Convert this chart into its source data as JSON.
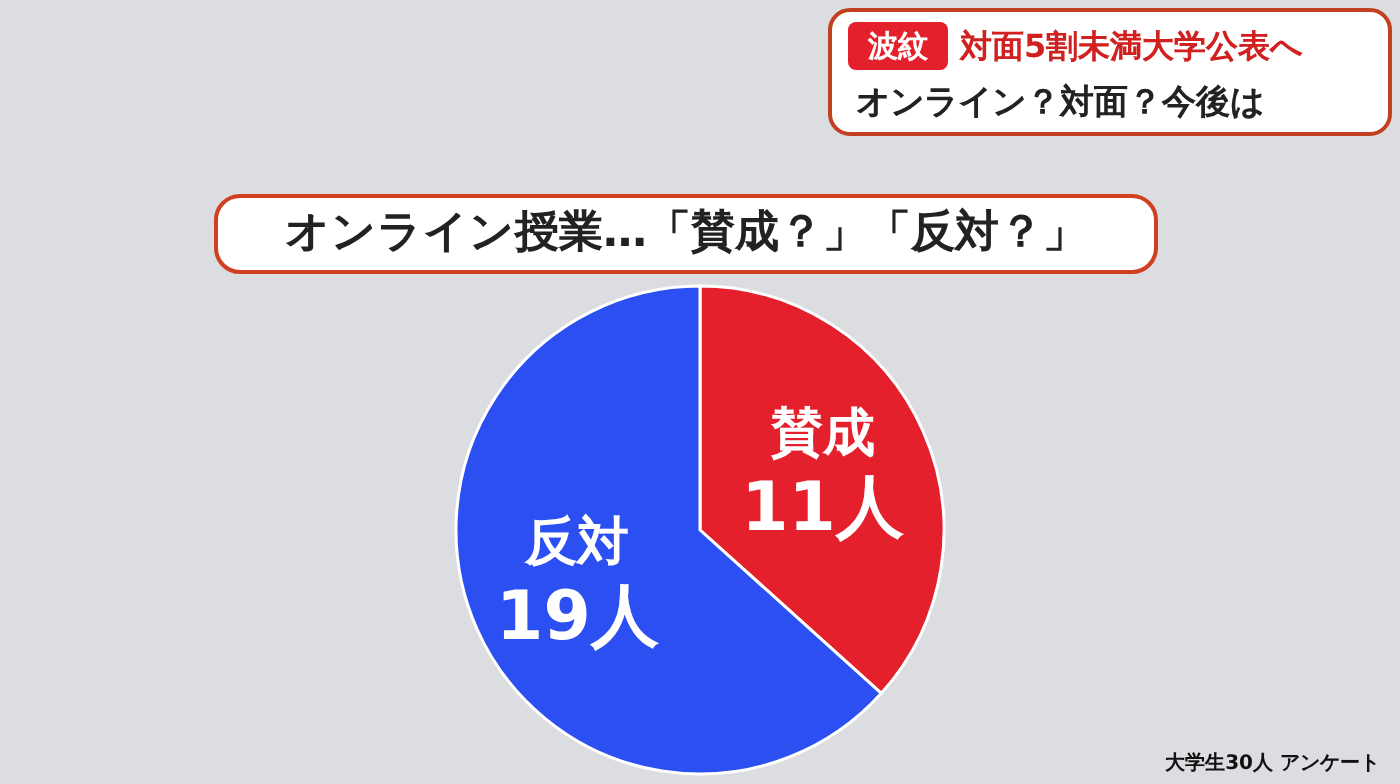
{
  "chart_data": {
    "type": "pie",
    "title": "オンライン授業…「賛成？」「反対？」",
    "categories": [
      "賛成",
      "反対"
    ],
    "values": [
      11,
      19
    ],
    "value_labels": [
      "11人",
      "19人"
    ],
    "colors": [
      "#e3202b",
      "#2b4ff0"
    ],
    "annotations": [
      "波紋",
      "対面5割未満大学公表へ",
      "オンライン？対面？今後は",
      "大学生30人 アンケート"
    ]
  }
}
